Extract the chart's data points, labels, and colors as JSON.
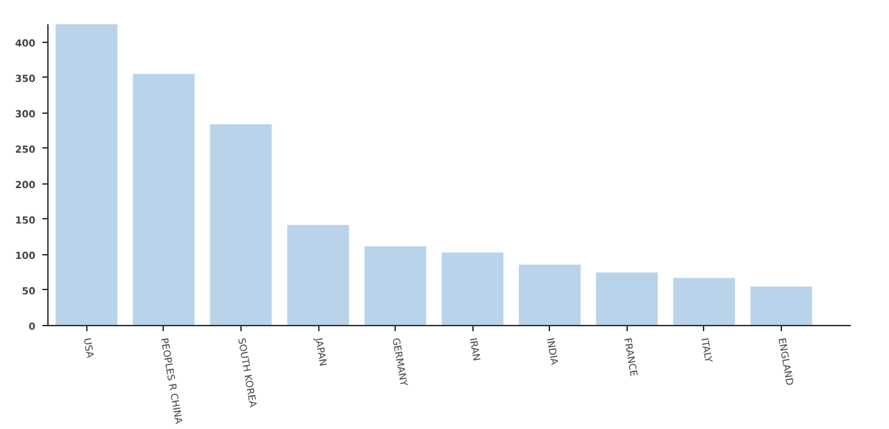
{
  "chart_data": {
    "type": "bar",
    "categories": [
      "USA",
      "PEOPLES R CHINA",
      "SOUTH KOREA",
      "JAPAN",
      "GERMANY",
      "IRAN",
      "INDIA",
      "FRANCE",
      "ITALY",
      "ENGLAND"
    ],
    "values": [
      425,
      355,
      284,
      142,
      112,
      103,
      86,
      75,
      67,
      55
    ],
    "color": "#b9d3ea",
    "ylim": [
      0,
      425
    ],
    "yticks": [
      0,
      50,
      100,
      150,
      200,
      250,
      300,
      350,
      400
    ],
    "grid": false
  }
}
